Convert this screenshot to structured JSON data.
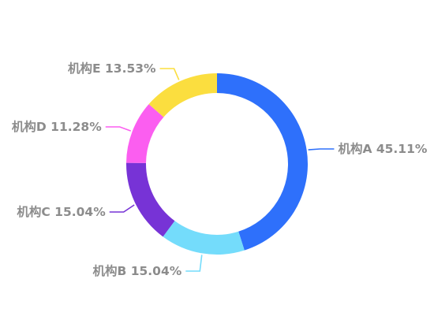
{
  "chart_data": {
    "type": "pie",
    "variant": "donut",
    "slices": [
      {
        "name": "机构A",
        "value": 45.11,
        "label": "机构A 45.11%",
        "color": "#2e70fb"
      },
      {
        "name": "机构B",
        "value": 15.04,
        "label": "机构B 15.04%",
        "color": "#74dcfb"
      },
      {
        "name": "机构C",
        "value": 15.04,
        "label": "机构C 15.04%",
        "color": "#7733d6"
      },
      {
        "name": "机构D",
        "value": 11.28,
        "label": "机构D 11.28%",
        "color": "#fb5ef0"
      },
      {
        "name": "机构E",
        "value": 13.53,
        "label": "机构E 13.53%",
        "color": "#fbde3f"
      }
    ],
    "start_angle": "12 o'clock",
    "direction": "clockwise",
    "legend": "none",
    "label_color": "#8c8c8c"
  }
}
